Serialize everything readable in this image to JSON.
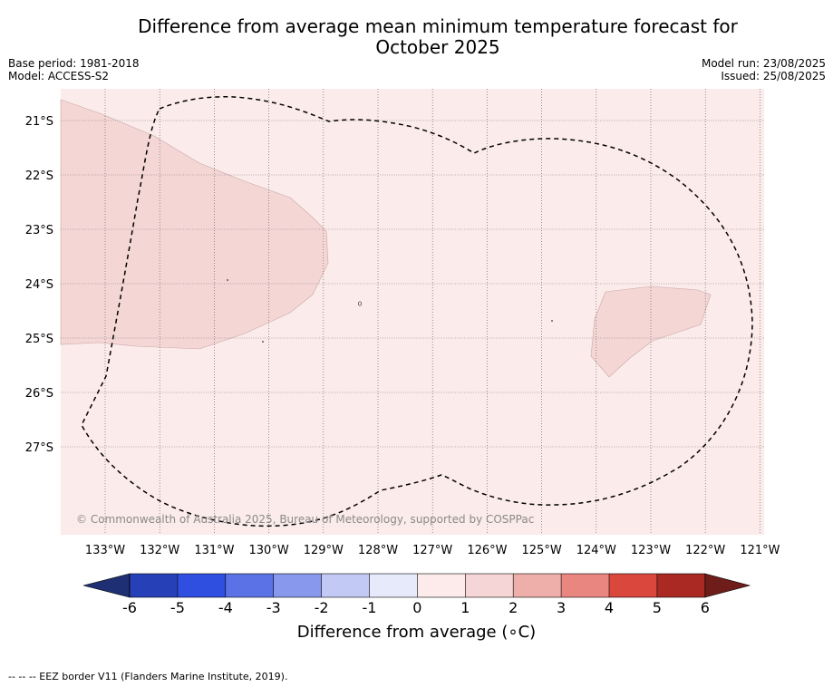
{
  "title_line1": "Difference from average mean minimum temperature forecast for",
  "title_line2": "October 2025",
  "left_meta": {
    "base_period": "Base period: 1981-2018",
    "model": "Model: ACCESS-S2"
  },
  "right_meta": {
    "model_run": "Model run: 23/08/2025",
    "issued": "Issued: 25/08/2025"
  },
  "map": {
    "lon_labels": [
      "133°W",
      "132°W",
      "131°W",
      "130°W",
      "129°W",
      "128°W",
      "127°W",
      "126°W",
      "125°W",
      "124°W",
      "123°W",
      "122°W",
      "121°W"
    ],
    "lat_labels": [
      "21°S",
      "22°S",
      "23°S",
      "24°S",
      "25°S",
      "26°S",
      "27°S"
    ],
    "background_class": "0 to 1",
    "anomaly_areas_class": "1 to 2",
    "copyright": "© Commonwealth of Australia 2025, Bureau of Meteorology, supported by COSPPac"
  },
  "colorbar": {
    "tick_labels": [
      "-6",
      "-5",
      "-4",
      "-3",
      "-2",
      "-1",
      "0",
      "1",
      "2",
      "3",
      "4",
      "5",
      "6"
    ],
    "colors": [
      "#1e2f73",
      "#2640b8",
      "#2e4fe0",
      "#5a72e6",
      "#8898ec",
      "#c2c9f5",
      "#e6eafa",
      "#fcebea",
      "#f5d5d5",
      "#eeaea9",
      "#e8867f",
      "#d9473d",
      "#aa2a23",
      "#6e1d1a"
    ],
    "label": "Difference from average (∘C)"
  },
  "footer": "-- -- -- EEZ border V11 (Flanders Marine Institute, 2019)."
}
